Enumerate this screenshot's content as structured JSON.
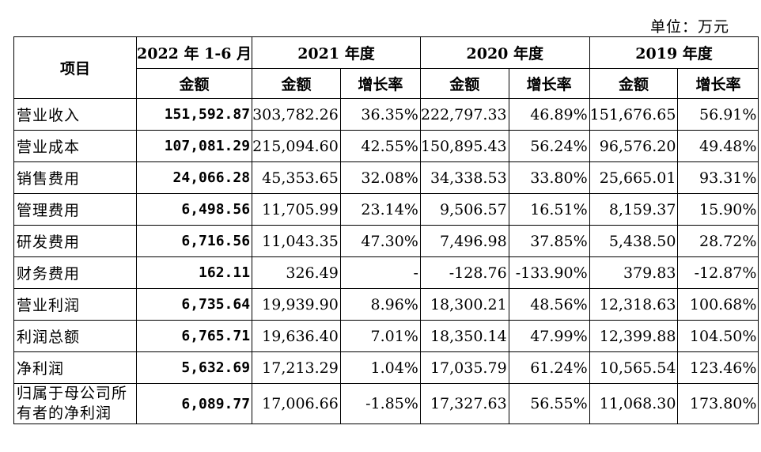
{
  "unit_label": "单位：万元",
  "header": {
    "item_label": "项目",
    "periods": [
      "2022 年 1-6 月",
      "2021 年度",
      "2020 年度",
      "2019 年度"
    ],
    "amount_label": "金额",
    "growth_label": "增长率"
  },
  "rows": [
    {
      "label": "营业收入",
      "v2022": "151,592.87",
      "v2021": "303,782.26",
      "g2021": "36.35%",
      "v2020": "222,797.33",
      "g2020": "46.89%",
      "v2019": "151,676.65",
      "g2019": "56.91%"
    },
    {
      "label": "营业成本",
      "v2022": "107,081.29",
      "v2021": "215,094.60",
      "g2021": "42.55%",
      "v2020": "150,895.43",
      "g2020": "56.24%",
      "v2019": "96,576.20",
      "g2019": "49.48%"
    },
    {
      "label": "销售费用",
      "v2022": "24,066.28",
      "v2021": "45,353.65",
      "g2021": "32.08%",
      "v2020": "34,338.53",
      "g2020": "33.80%",
      "v2019": "25,665.01",
      "g2019": "93.31%"
    },
    {
      "label": "管理费用",
      "v2022": "6,498.56",
      "v2021": "11,705.99",
      "g2021": "23.14%",
      "v2020": "9,506.57",
      "g2020": "16.51%",
      "v2019": "8,159.37",
      "g2019": "15.90%"
    },
    {
      "label": "研发费用",
      "v2022": "6,716.56",
      "v2021": "11,043.35",
      "g2021": "47.30%",
      "v2020": "7,496.98",
      "g2020": "37.85%",
      "v2019": "5,438.50",
      "g2019": "28.72%"
    },
    {
      "label": "财务费用",
      "v2022": "162.11",
      "v2021": "326.49",
      "g2021": "-",
      "v2020": "-128.76",
      "g2020": "-133.90%",
      "v2019": "379.83",
      "g2019": "-12.87%"
    },
    {
      "label": "营业利润",
      "v2022": "6,735.64",
      "v2021": "19,939.90",
      "g2021": "8.96%",
      "v2020": "18,300.21",
      "g2020": "48.56%",
      "v2019": "12,318.63",
      "g2019": "100.68%"
    },
    {
      "label": "利润总额",
      "v2022": "6,765.71",
      "v2021": "19,636.40",
      "g2021": "7.01%",
      "v2020": "18,350.14",
      "g2020": "47.99%",
      "v2019": "12,399.88",
      "g2019": "104.50%"
    },
    {
      "label": "净利润",
      "v2022": "5,632.69",
      "v2021": "17,213.29",
      "g2021": "1.04%",
      "v2020": "17,035.79",
      "g2020": "61.24%",
      "v2019": "10,565.54",
      "g2019": "123.46%"
    },
    {
      "label": "归属于母公司所有者的净利润",
      "v2022": "6,089.77",
      "v2021": "17,006.66",
      "g2021": "-1.85%",
      "v2020": "17,327.63",
      "g2020": "56.55%",
      "v2019": "11,068.30",
      "g2019": "173.80%"
    }
  ]
}
